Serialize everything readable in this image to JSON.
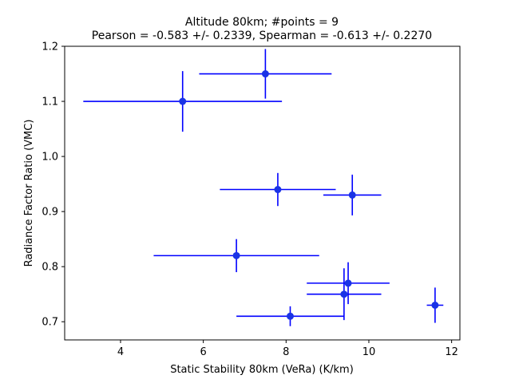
{
  "chart_data": {
    "type": "scatter",
    "title_line1": "Altitude 80km;  #points =  9",
    "title_line2": "Pearson = -0.583 +/-  0.2339, Spearman = -0.613 +/-  0.2270",
    "xlabel": "Static Stability 80km (VeRa) (K/km)",
    "ylabel": "Radiance Factor Ratio (VMC)",
    "xlim": [
      2.65,
      12.2
    ],
    "ylim": [
      0.667,
      1.2
    ],
    "xticks": [
      {
        "v": 4,
        "label": "4"
      },
      {
        "v": 6,
        "label": "6"
      },
      {
        "v": 8,
        "label": "8"
      },
      {
        "v": 10,
        "label": "10"
      },
      {
        "v": 12,
        "label": "12"
      }
    ],
    "yticks": [
      {
        "v": 0.7,
        "label": "0.7"
      },
      {
        "v": 0.8,
        "label": "0.8"
      },
      {
        "v": 0.9,
        "label": "0.9"
      },
      {
        "v": 1.0,
        "label": "1.0"
      },
      {
        "v": 1.1,
        "label": "1.1"
      },
      {
        "v": 1.2,
        "label": "1.2"
      }
    ],
    "grid": false,
    "color": "#0000ff",
    "marker_color": "#1a33e6",
    "points": [
      {
        "x": 7.5,
        "y": 1.15,
        "xerr": 1.6,
        "yerr": 0.045
      },
      {
        "x": 5.5,
        "y": 1.1,
        "xerr": 2.4,
        "yerr": 0.055
      },
      {
        "x": 7.8,
        "y": 0.94,
        "xerr": 1.4,
        "yerr": 0.03
      },
      {
        "x": 9.6,
        "y": 0.93,
        "xerr": 0.7,
        "yerr": 0.037
      },
      {
        "x": 6.8,
        "y": 0.82,
        "xerr": 2.0,
        "yerr": 0.03
      },
      {
        "x": 9.5,
        "y": 0.77,
        "xerr": 1.0,
        "yerr": 0.038
      },
      {
        "x": 9.4,
        "y": 0.75,
        "xerr": 0.9,
        "yerr": 0.047
      },
      {
        "x": 11.6,
        "y": 0.73,
        "xerr": 0.2,
        "yerr": 0.032
      },
      {
        "x": 8.1,
        "y": 0.71,
        "xerr": 1.3,
        "yerr": 0.018
      }
    ]
  }
}
